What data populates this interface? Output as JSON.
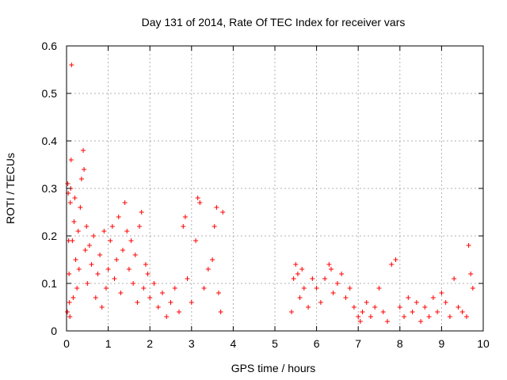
{
  "chart_data": {
    "type": "scatter",
    "title": "Day 131 of 2014, Rate Of TEC Index for receiver vars",
    "xlabel": "GPS time / hours",
    "ylabel": "ROTI / TECUs",
    "xlim": [
      0,
      10
    ],
    "ylim": [
      0,
      0.6
    ],
    "xticks": [
      "0",
      "1",
      "2",
      "3",
      "4",
      "5",
      "6",
      "7",
      "8",
      "9",
      "10"
    ],
    "yticks": [
      "0",
      "0.1",
      "0.2",
      "0.3",
      "0.4",
      "0.5",
      "0.6"
    ],
    "grid": true,
    "marker": "+",
    "color": "#ff0000",
    "series": [
      {
        "name": "ROTI",
        "x": [
          0.02,
          0.03,
          0.04,
          0.05,
          0.06,
          0.07,
          0.08,
          0.09,
          0.1,
          0.11,
          0.12,
          0.14,
          0.16,
          0.18,
          0.2,
          0.22,
          0.25,
          0.28,
          0.3,
          0.33,
          0.36,
          0.4,
          0.42,
          0.45,
          0.48,
          0.5,
          0.55,
          0.6,
          0.65,
          0.7,
          0.75,
          0.8,
          0.85,
          0.9,
          0.95,
          1.0,
          1.05,
          1.1,
          1.15,
          1.2,
          1.25,
          1.3,
          1.35,
          1.4,
          1.45,
          1.5,
          1.55,
          1.6,
          1.65,
          1.7,
          1.75,
          1.8,
          1.85,
          1.9,
          1.95,
          2.0,
          2.1,
          2.2,
          2.3,
          2.4,
          2.5,
          2.6,
          2.7,
          2.8,
          2.85,
          2.9,
          3.0,
          3.1,
          3.15,
          3.2,
          3.3,
          3.4,
          3.5,
          3.55,
          3.6,
          3.65,
          3.7,
          3.75,
          5.4,
          5.45,
          5.5,
          5.55,
          5.6,
          5.65,
          5.7,
          5.8,
          5.9,
          6.0,
          6.1,
          6.2,
          6.3,
          6.35,
          6.4,
          6.5,
          6.6,
          6.7,
          6.8,
          6.9,
          7.0,
          7.05,
          7.1,
          7.2,
          7.3,
          7.4,
          7.5,
          7.6,
          7.7,
          7.8,
          7.9,
          8.0,
          8.1,
          8.2,
          8.3,
          8.4,
          8.5,
          8.6,
          8.7,
          8.8,
          8.9,
          9.0,
          9.1,
          9.2,
          9.3,
          9.4,
          9.5,
          9.6,
          9.65,
          9.7,
          9.75
        ],
        "y": [
          0.04,
          0.31,
          0.29,
          0.19,
          0.12,
          0.06,
          0.03,
          0.27,
          0.3,
          0.36,
          0.56,
          0.19,
          0.07,
          0.23,
          0.28,
          0.15,
          0.09,
          0.21,
          0.13,
          0.26,
          0.32,
          0.38,
          0.34,
          0.17,
          0.22,
          0.1,
          0.18,
          0.14,
          0.2,
          0.07,
          0.12,
          0.16,
          0.05,
          0.21,
          0.09,
          0.13,
          0.19,
          0.22,
          0.11,
          0.15,
          0.24,
          0.08,
          0.17,
          0.27,
          0.21,
          0.13,
          0.19,
          0.1,
          0.16,
          0.06,
          0.22,
          0.25,
          0.09,
          0.14,
          0.12,
          0.07,
          0.1,
          0.05,
          0.08,
          0.03,
          0.06,
          0.09,
          0.04,
          0.22,
          0.24,
          0.11,
          0.06,
          0.19,
          0.28,
          0.27,
          0.09,
          0.13,
          0.15,
          0.22,
          0.26,
          0.08,
          0.04,
          0.25,
          0.04,
          0.11,
          0.14,
          0.12,
          0.07,
          0.13,
          0.09,
          0.05,
          0.11,
          0.09,
          0.06,
          0.11,
          0.14,
          0.13,
          0.08,
          0.1,
          0.12,
          0.07,
          0.09,
          0.05,
          0.03,
          0.02,
          0.04,
          0.06,
          0.03,
          0.05,
          0.09,
          0.04,
          0.02,
          0.14,
          0.15,
          0.05,
          0.03,
          0.07,
          0.04,
          0.06,
          0.02,
          0.05,
          0.03,
          0.07,
          0.04,
          0.08,
          0.06,
          0.03,
          0.11,
          0.05,
          0.04,
          0.03,
          0.18,
          0.12,
          0.09
        ]
      }
    ]
  }
}
